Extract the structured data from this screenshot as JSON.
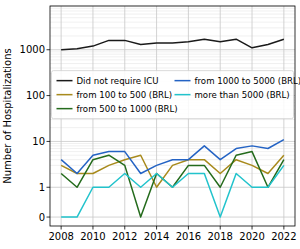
{
  "chart_data": {
    "type": "line",
    "y_label": "Number of Hospitalizations",
    "x": [
      2008,
      2009,
      2010,
      2011,
      2012,
      2013,
      2014,
      2015,
      2016,
      2017,
      2018,
      2019,
      2020,
      2021,
      2022
    ],
    "xlim": [
      2007.3,
      2022.7
    ],
    "xticks": [
      2008,
      2010,
      2012,
      2014,
      2016,
      2018,
      2020,
      2022
    ],
    "ylim": [
      -0.3,
      9000
    ],
    "yticks": [
      0,
      1,
      10,
      100,
      1000
    ],
    "log": "y",
    "grid": true,
    "legend": "center",
    "series": [
      {
        "name": "Did not require ICU",
        "color": "#1a1a1a",
        "values": [
          1000,
          1050,
          1200,
          1600,
          1600,
          1300,
          1400,
          1400,
          1500,
          1700,
          1500,
          1700,
          1100,
          1300,
          1700
        ]
      },
      {
        "name": "from 100 to 500 (BRL)",
        "color": "#a88a1c",
        "values": [
          3,
          2,
          2,
          3,
          4,
          5,
          1,
          3,
          4,
          4,
          2,
          4,
          3,
          2,
          5
        ]
      },
      {
        "name": "from 500 to 1000 (BRL)",
        "color": "#246b1c",
        "values": [
          2,
          1,
          4,
          5,
          3,
          0,
          2,
          1,
          3,
          3,
          1,
          5,
          6,
          1,
          4
        ]
      },
      {
        "name": "from 1000 to 5000 (BRL)",
        "color": "#2463c4",
        "values": [
          4,
          2,
          5,
          6,
          6,
          2,
          3,
          4,
          4,
          8,
          4,
          7,
          8,
          7,
          11
        ]
      },
      {
        "name": "more than 5000 (BRL)",
        "color": "#22c3cc",
        "values": [
          0,
          0,
          1,
          1,
          2,
          1,
          2,
          1,
          2,
          2,
          0,
          2,
          1,
          1,
          3
        ]
      }
    ]
  }
}
